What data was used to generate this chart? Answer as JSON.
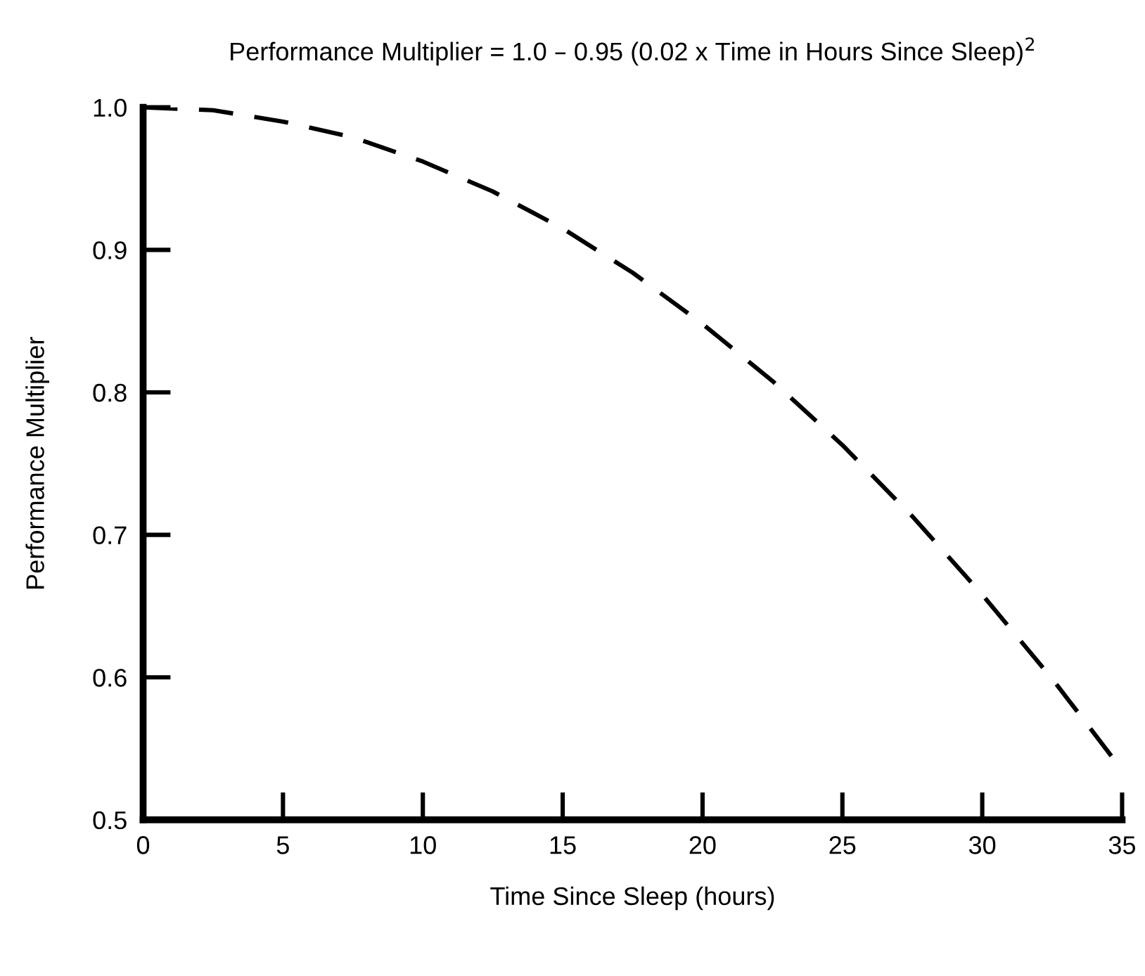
{
  "chart_data": {
    "type": "line",
    "title": "Performance Multiplier = 1.0 – 0.95 (0.02 x Time in Hours Since Sleep)$^{2}$",
    "xlabel": "Time Since Sleep (hours)",
    "ylabel": "Performance Multiplier",
    "series": [
      {
        "color": "#000000",
        "x": [
          0,
          2.5,
          5,
          7.5,
          10,
          12.5,
          15,
          17.5,
          20,
          22.5,
          25,
          27.5,
          30,
          32.5,
          35
        ],
        "values": [
          1.0,
          0.998,
          0.99,
          0.979,
          0.962,
          0.941,
          0.915,
          0.884,
          0.848,
          0.808,
          0.763,
          0.713,
          0.658,
          0.599,
          0.535
        ]
      }
    ],
    "xlim": [
      0,
      35
    ],
    "xticks": [
      0,
      5,
      10,
      15,
      20,
      25,
      30,
      35
    ],
    "ylim": [
      0.5,
      1.0
    ],
    "yticks": [
      {
        "value": 0.5,
        "label": "0.5"
      },
      {
        "value": 0.6,
        "label": "0.6"
      },
      {
        "value": 0.7,
        "label": "0.7"
      },
      {
        "value": 0.8,
        "label": "0.8"
      },
      {
        "value": 0.9,
        "label": "0.9"
      },
      {
        "value": 1.0,
        "label": "1.0"
      }
    ],
    "grid": false,
    "legend": false,
    "marker": "none",
    "line_style": "dashed"
  }
}
